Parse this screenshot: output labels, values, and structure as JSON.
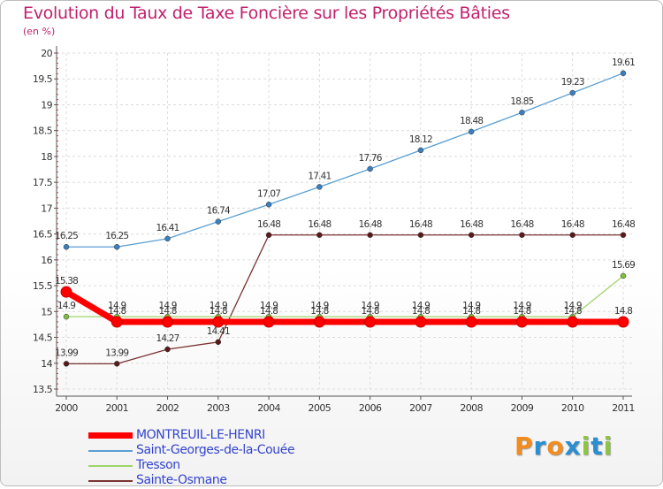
{
  "header": {
    "title": "Evolution du Taux de Taxe Foncière sur les Propriétés Bâties",
    "unit": "(en %)"
  },
  "logo": {
    "letters": [
      "P",
      "r",
      "o",
      "x",
      "i",
      "t",
      "i"
    ],
    "colors": [
      "#f28c1e",
      "#2a8fd0",
      "#f28c1e",
      "#2a8fd0",
      "#8cc63e",
      "#2a8fd0",
      "#8cc63e"
    ]
  },
  "chart_data": {
    "type": "line",
    "title": "Evolution du Taux de Taxe Foncière sur les Propriétés Bâties",
    "ylabel": "(en %)",
    "xlabel": "",
    "categories": [
      "2000",
      "2001",
      "2002",
      "2003",
      "2004",
      "2005",
      "2006",
      "2007",
      "2008",
      "2009",
      "2010",
      "2011"
    ],
    "ylim": [
      13.5,
      20
    ],
    "yticks": [
      "13.5",
      "14",
      "14.5",
      "15",
      "15.5",
      "16",
      "16.5",
      "17",
      "17.5",
      "18",
      "18.5",
      "19",
      "19.5",
      "20"
    ],
    "series": [
      {
        "name": "Saint-Georges-de-la-Couée",
        "color": "#5a9fd4",
        "marker": "#3a7fbf",
        "values": [
          16.25,
          16.25,
          16.41,
          16.74,
          17.07,
          17.41,
          17.76,
          18.12,
          18.48,
          18.85,
          19.23,
          19.61
        ],
        "labels": [
          "16.25",
          "16.25",
          "16.41",
          "16.74",
          "17.07",
          "17.41",
          "17.76",
          "18.12",
          "18.48",
          "18.85",
          "19.23",
          "19.61"
        ]
      },
      {
        "name": "Sainte-Osmane",
        "color": "#7a3333",
        "marker": "#5a1a1a",
        "values": [
          13.99,
          13.99,
          14.27,
          14.41,
          16.48,
          16.48,
          16.48,
          16.48,
          16.48,
          16.48,
          16.48,
          16.48
        ],
        "labels": [
          "13.99",
          "13.99",
          "14.27",
          "14.41",
          "16.48",
          "16.48",
          "16.48",
          "16.48",
          "16.48",
          "16.48",
          "16.48",
          "16.48"
        ]
      },
      {
        "name": "Tresson",
        "color": "#9ed56a",
        "marker": "#7dbf3e",
        "values": [
          14.9,
          14.9,
          14.9,
          14.9,
          14.9,
          14.9,
          14.9,
          14.9,
          14.9,
          14.9,
          14.9,
          15.69
        ],
        "labels": [
          "14.9",
          "14.9",
          "14.9",
          "14.9",
          "14.9",
          "14.9",
          "14.9",
          "14.9",
          "14.9",
          "14.9",
          "14.9",
          "15.69"
        ]
      },
      {
        "name": "MONTREUIL-LE-HENRI",
        "color": "#ff0000",
        "marker": "#ff0000",
        "thick": true,
        "values": [
          15.38,
          14.8,
          14.8,
          14.8,
          14.8,
          14.8,
          14.8,
          14.8,
          14.8,
          14.8,
          14.8,
          14.8
        ],
        "labels": [
          "15.38",
          "14.8",
          "14.8",
          "14.8",
          "14.8",
          "14.8",
          "14.8",
          "14.8",
          "14.8",
          "14.8",
          "14.8",
          "14.8"
        ]
      }
    ],
    "legend": [
      {
        "name": "MONTREUIL-LE-HENRI",
        "color": "#ff0000",
        "thick": true
      },
      {
        "name": "Saint-Georges-de-la-Couée",
        "color": "#5a9fd4"
      },
      {
        "name": "Tresson",
        "color": "#9ed56a"
      },
      {
        "name": "Sainte-Osmane",
        "color": "#7a3333"
      }
    ]
  }
}
